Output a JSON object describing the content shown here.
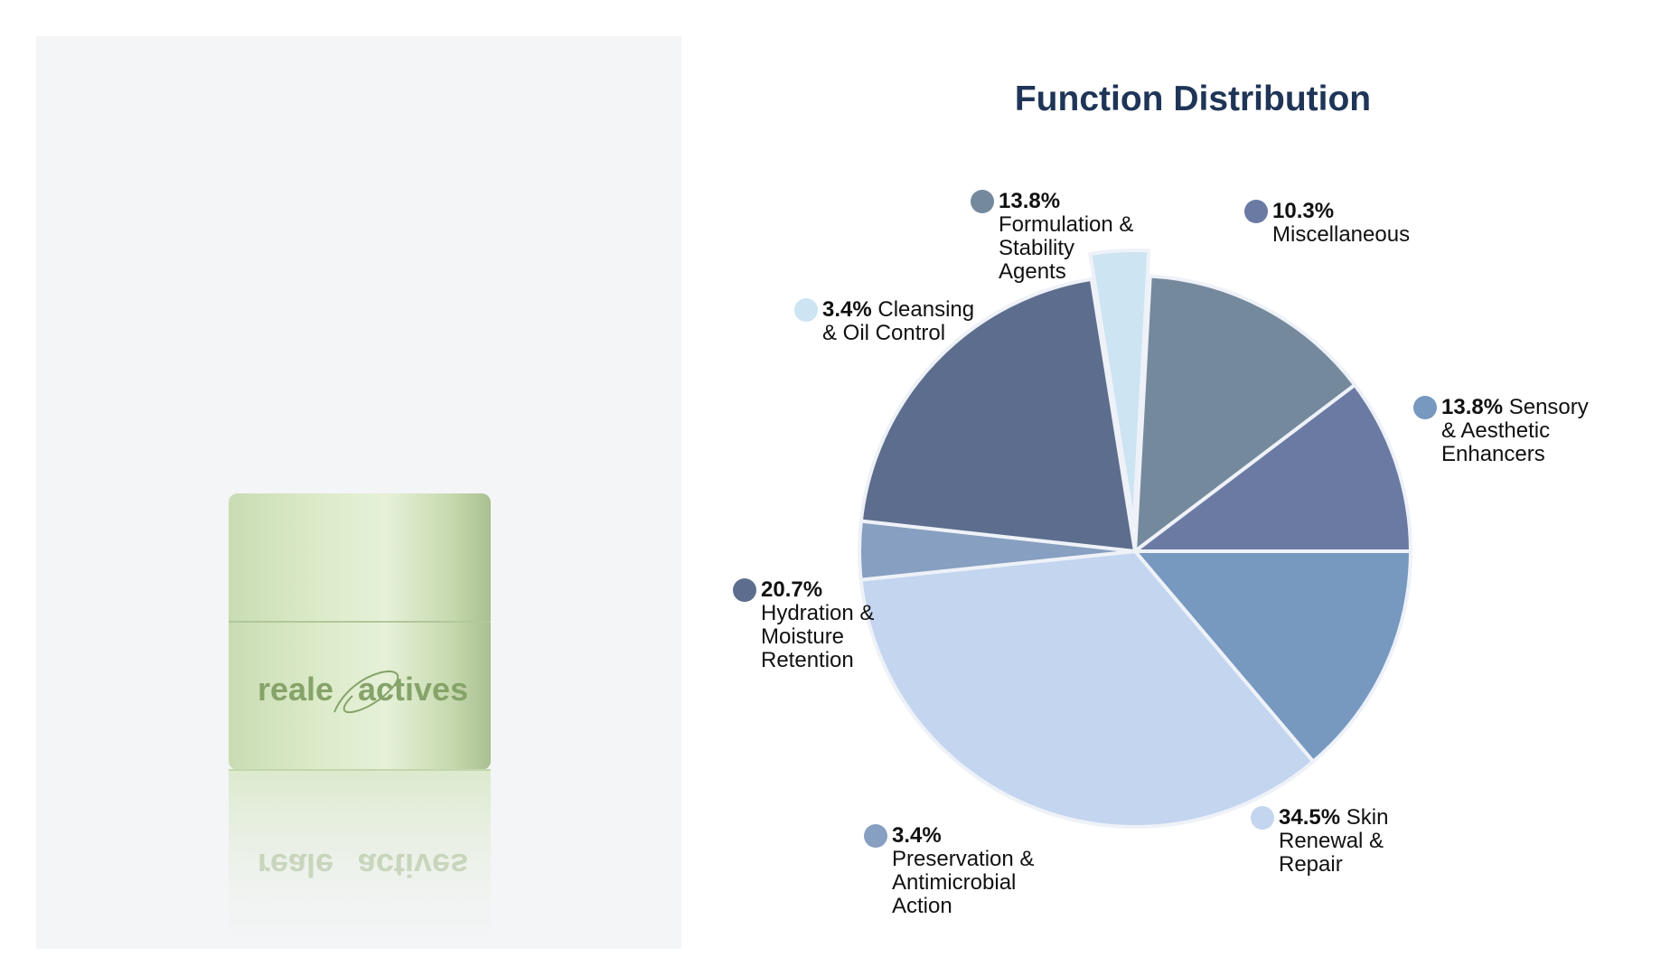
{
  "product": {
    "brand_left": "reale",
    "brand_right": "actives",
    "jar_color": "#d6e6c4",
    "jar_shade": "#b7cc9f",
    "logo_color": "#86a36a"
  },
  "chart_data": {
    "type": "pie",
    "title": "Function Distribution",
    "slices": [
      {
        "label": "Sensory & Aesthetic Enhancers",
        "value": 13.8,
        "pct_text": "13.8%",
        "color": "#7798bf",
        "exploded": false
      },
      {
        "label": "Skin Renewal & Repair",
        "value": 34.5,
        "pct_text": "34.5%",
        "color": "#c3d5ef",
        "exploded": false
      },
      {
        "label": "Preservation & Antimicrobial Action",
        "value": 3.4,
        "pct_text": "3.4%",
        "color": "#879fc0",
        "exploded": false
      },
      {
        "label": "Hydration & Moisture Retention",
        "value": 20.7,
        "pct_text": "20.7%",
        "color": "#5d6d8d",
        "exploded": false
      },
      {
        "label": "Cleansing & Oil Control",
        "value": 3.4,
        "pct_text": "3.4%",
        "color": "#cde4f2",
        "exploded": true
      },
      {
        "label": "Formulation & Stability Agents",
        "value": 13.8,
        "pct_text": "13.8%",
        "color": "#75899d",
        "exploded": false
      },
      {
        "label": "Miscellaneous",
        "value": 10.3,
        "pct_text": "10.3%",
        "color": "#6a7aa3",
        "exploded": false
      }
    ]
  },
  "labels": [
    {
      "pct": "13.8%",
      "lines": [
        " Sensory",
        "& Aesthetic",
        "Enhancers"
      ]
    },
    {
      "pct": "34.5%",
      "lines": [
        " Skin",
        "Renewal &",
        "Repair"
      ]
    },
    {
      "pct": "3.4%",
      "lines": [
        "",
        "Preservation &",
        "Antimicrobial",
        "Action"
      ]
    },
    {
      "pct": "20.7%",
      "lines": [
        "",
        "Hydration &",
        "Moisture",
        "Retention"
      ]
    },
    {
      "pct": "3.4%",
      "lines": [
        " Cleansing",
        "& Oil Control"
      ]
    },
    {
      "pct": "13.8%",
      "lines": [
        "",
        "Formulation &",
        "Stability",
        "Agents"
      ]
    },
    {
      "pct": "10.3%",
      "lines": [
        "",
        "Miscellaneous"
      ]
    }
  ]
}
